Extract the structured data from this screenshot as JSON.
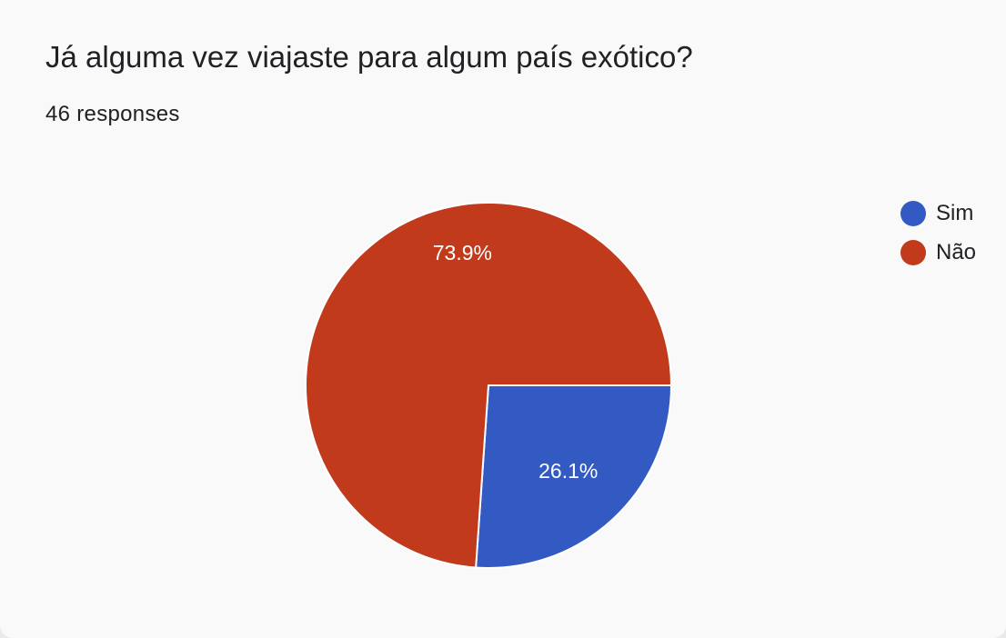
{
  "header": {
    "title": "Já alguma vez viajaste para algum país exótico?",
    "responses": "46 responses"
  },
  "chart_data": {
    "type": "pie",
    "categories": [
      "Sim",
      "Não"
    ],
    "values": [
      26.1,
      73.9
    ],
    "labels": [
      "26.1%",
      "73.9%"
    ],
    "colors": [
      "#3359c3",
      "#c13a1b"
    ],
    "legend": "right",
    "title": "Já alguma vez viajaste para algum país exótico?"
  }
}
